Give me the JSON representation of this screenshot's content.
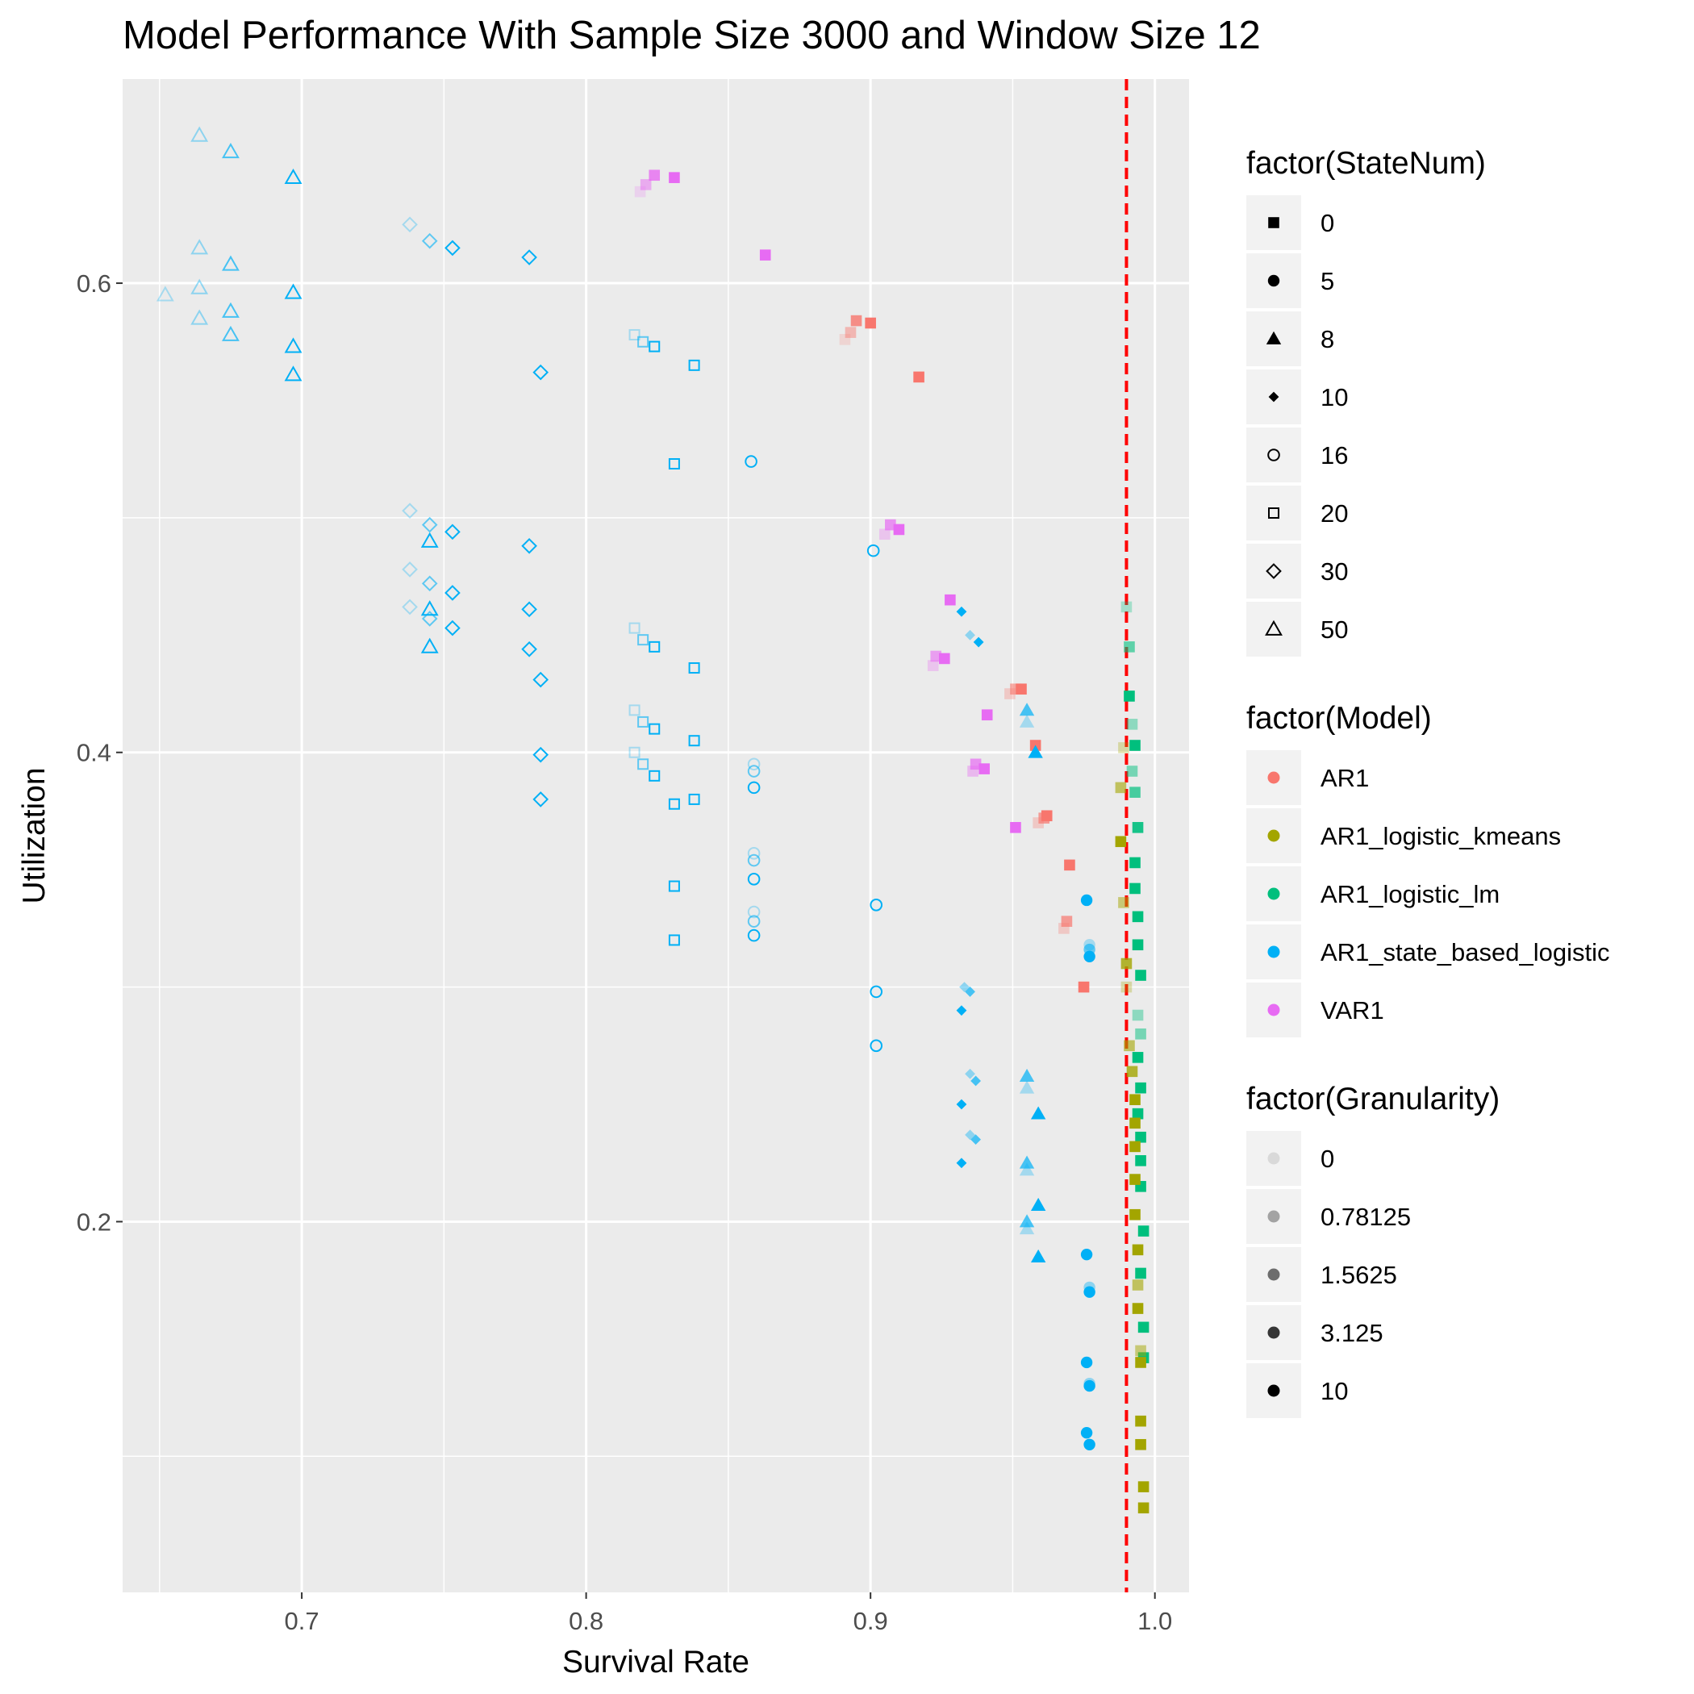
{
  "chart_data": {
    "type": "scatter",
    "title": "Model Performance With Sample Size 3000 and Window Size 12",
    "xlabel": "Survival Rate",
    "ylabel": "Utilization",
    "xlim": [
      0.637,
      1.012
    ],
    "ylim": [
      0.042,
      0.687
    ],
    "x_ticks": [
      0.7,
      0.8,
      0.9,
      1.0
    ],
    "x_tick_labels": [
      "0.7",
      "0.8",
      "0.9",
      "1.0"
    ],
    "y_ticks": [
      0.2,
      0.4,
      0.6
    ],
    "y_tick_labels": [
      "0.2",
      "0.4",
      "0.6"
    ],
    "reference_line": {
      "x": 0.99,
      "color": "#ff0000",
      "style": "dashed"
    },
    "background": "#ebebeb",
    "grid": true,
    "legend_position": "right",
    "legends": [
      {
        "title": "factor(StateNum)",
        "kind": "shape",
        "entries": [
          {
            "label": "0",
            "shape": "square-filled"
          },
          {
            "label": "5",
            "shape": "circle-filled"
          },
          {
            "label": "8",
            "shape": "triangle-filled"
          },
          {
            "label": "10",
            "shape": "diamond-filled"
          },
          {
            "label": "16",
            "shape": "circle-open"
          },
          {
            "label": "20",
            "shape": "square-open"
          },
          {
            "label": "30",
            "shape": "diamond-open"
          },
          {
            "label": "50",
            "shape": "triangle-open"
          }
        ]
      },
      {
        "title": "factor(Model)",
        "kind": "color",
        "entries": [
          {
            "label": "AR1",
            "color": "#f8766d"
          },
          {
            "label": "AR1_logistic_kmeans",
            "color": "#a3a500"
          },
          {
            "label": "AR1_logistic_lm",
            "color": "#00bf7d"
          },
          {
            "label": "AR1_state_based_logistic",
            "color": "#00b0f6"
          },
          {
            "label": "VAR1",
            "color": "#e76bf3"
          }
        ]
      },
      {
        "title": "factor(Granularity)",
        "kind": "alpha",
        "entries": [
          {
            "label": "0",
            "alpha": 0.1
          },
          {
            "label": "0.78125",
            "alpha": 0.325
          },
          {
            "label": "1.5625",
            "alpha": 0.55
          },
          {
            "label": "3.125",
            "alpha": 0.775
          },
          {
            "label": "10",
            "alpha": 1.0
          }
        ]
      }
    ],
    "series": [
      {
        "name": "AR1",
        "state": "0",
        "color": "#f8766d",
        "shape": "square-filled",
        "points": [
          [
            0.891,
            0.576,
            0.2
          ],
          [
            0.893,
            0.579,
            0.45
          ],
          [
            0.895,
            0.584,
            0.8
          ],
          [
            0.9,
            0.583,
            1
          ],
          [
            0.917,
            0.56,
            1
          ],
          [
            0.949,
            0.425,
            0.3
          ],
          [
            0.951,
            0.427,
            0.6
          ],
          [
            0.953,
            0.427,
            1
          ],
          [
            0.958,
            0.403,
            1
          ],
          [
            0.959,
            0.37,
            0.3
          ],
          [
            0.961,
            0.372,
            0.7
          ],
          [
            0.962,
            0.373,
            1
          ],
          [
            0.968,
            0.325,
            0.3
          ],
          [
            0.969,
            0.328,
            0.7
          ],
          [
            0.97,
            0.352,
            1
          ],
          [
            0.975,
            0.3,
            1
          ]
        ]
      },
      {
        "name": "VAR1",
        "state": "0",
        "color": "#e76bf3",
        "shape": "square-filled",
        "points": [
          [
            0.819,
            0.639,
            0.2
          ],
          [
            0.821,
            0.642,
            0.5
          ],
          [
            0.824,
            0.646,
            0.8
          ],
          [
            0.831,
            0.645,
            1
          ],
          [
            0.863,
            0.612,
            1
          ],
          [
            0.905,
            0.493,
            0.3
          ],
          [
            0.907,
            0.497,
            0.7
          ],
          [
            0.91,
            0.495,
            1
          ],
          [
            0.928,
            0.465,
            1
          ],
          [
            0.922,
            0.437,
            0.3
          ],
          [
            0.923,
            0.441,
            0.6
          ],
          [
            0.926,
            0.44,
            1
          ],
          [
            0.936,
            0.392,
            0.4
          ],
          [
            0.937,
            0.395,
            0.7
          ],
          [
            0.94,
            0.393,
            1
          ],
          [
            0.941,
            0.416,
            1
          ],
          [
            0.951,
            0.368,
            1
          ]
        ]
      },
      {
        "name": "AR1_logistic_lm",
        "state": "0",
        "color": "#00bf7d",
        "shape": "square-filled",
        "points": [
          [
            0.99,
            0.462,
            0.3
          ],
          [
            0.991,
            0.445,
            0.6
          ],
          [
            0.991,
            0.424,
            1
          ],
          [
            0.992,
            0.412,
            0.4
          ],
          [
            0.993,
            0.403,
            1
          ],
          [
            0.992,
            0.392,
            0.5
          ],
          [
            0.993,
            0.383,
            0.7
          ],
          [
            0.994,
            0.368,
            0.9
          ],
          [
            0.993,
            0.353,
            1
          ],
          [
            0.993,
            0.342,
            1
          ],
          [
            0.994,
            0.33,
            1
          ],
          [
            0.994,
            0.318,
            1
          ],
          [
            0.995,
            0.305,
            1
          ],
          [
            0.994,
            0.288,
            0.4
          ],
          [
            0.995,
            0.28,
            0.5
          ],
          [
            0.994,
            0.27,
            1
          ],
          [
            0.995,
            0.257,
            1
          ],
          [
            0.994,
            0.246,
            1
          ],
          [
            0.995,
            0.236,
            1
          ],
          [
            0.995,
            0.226,
            1
          ],
          [
            0.995,
            0.215,
            1
          ],
          [
            0.996,
            0.196,
            1
          ],
          [
            0.995,
            0.178,
            1
          ],
          [
            0.996,
            0.155,
            1
          ],
          [
            0.996,
            0.142,
            1
          ]
        ]
      },
      {
        "name": "AR1_logistic_kmeans",
        "state": "0",
        "color": "#a3a500",
        "shape": "square-filled",
        "points": [
          [
            0.989,
            0.402,
            0.3
          ],
          [
            0.988,
            0.385,
            0.6
          ],
          [
            0.988,
            0.362,
            1
          ],
          [
            0.989,
            0.336,
            0.5
          ],
          [
            0.99,
            0.31,
            0.8
          ],
          [
            0.99,
            0.3,
            0.3
          ],
          [
            0.991,
            0.275,
            0.6
          ],
          [
            0.992,
            0.264,
            0.8
          ],
          [
            0.993,
            0.252,
            1
          ],
          [
            0.993,
            0.242,
            1
          ],
          [
            0.993,
            0.232,
            1
          ],
          [
            0.993,
            0.218,
            1
          ],
          [
            0.993,
            0.203,
            1
          ],
          [
            0.994,
            0.188,
            1
          ],
          [
            0.994,
            0.173,
            0.6
          ],
          [
            0.994,
            0.163,
            1
          ],
          [
            0.995,
            0.145,
            0.5
          ],
          [
            0.995,
            0.14,
            1
          ],
          [
            0.995,
            0.115,
            1
          ],
          [
            0.995,
            0.105,
            1
          ],
          [
            0.996,
            0.087,
            1
          ],
          [
            0.996,
            0.078,
            1
          ]
        ]
      },
      {
        "name": "AR1_state_based_logistic",
        "state": "5",
        "color": "#00b0f6",
        "shape": "circle-filled",
        "points": [
          [
            0.976,
            0.337,
            1
          ],
          [
            0.977,
            0.318,
            0.3
          ],
          [
            0.977,
            0.316,
            0.6
          ],
          [
            0.977,
            0.313,
            1
          ],
          [
            0.976,
            0.186,
            1
          ],
          [
            0.977,
            0.172,
            0.4
          ],
          [
            0.977,
            0.17,
            1
          ],
          [
            0.976,
            0.14,
            1
          ],
          [
            0.977,
            0.131,
            0.4
          ],
          [
            0.977,
            0.13,
            1
          ],
          [
            0.976,
            0.11,
            1
          ],
          [
            0.977,
            0.105,
            1
          ]
        ]
      },
      {
        "name": "AR1_state_based_logistic",
        "state": "8",
        "color": "#00b0f6",
        "shape": "triangle-filled",
        "points": [
          [
            0.955,
            0.413,
            0.3
          ],
          [
            0.955,
            0.418,
            0.7
          ],
          [
            0.958,
            0.4,
            1
          ],
          [
            0.955,
            0.257,
            0.3
          ],
          [
            0.955,
            0.262,
            0.7
          ],
          [
            0.959,
            0.246,
            1
          ],
          [
            0.955,
            0.222,
            0.3
          ],
          [
            0.955,
            0.225,
            0.7
          ],
          [
            0.959,
            0.207,
            1
          ],
          [
            0.955,
            0.197,
            0.3
          ],
          [
            0.955,
            0.2,
            0.7
          ],
          [
            0.959,
            0.185,
            1
          ]
        ]
      },
      {
        "name": "AR1_state_based_logistic",
        "state": "10",
        "color": "#00b0f6",
        "shape": "diamond-filled",
        "points": [
          [
            0.932,
            0.46,
            1
          ],
          [
            0.935,
            0.45,
            0.4
          ],
          [
            0.938,
            0.447,
            1
          ],
          [
            0.933,
            0.3,
            0.4
          ],
          [
            0.935,
            0.298,
            0.7
          ],
          [
            0.932,
            0.29,
            1
          ],
          [
            0.935,
            0.263,
            0.4
          ],
          [
            0.937,
            0.26,
            0.7
          ],
          [
            0.932,
            0.25,
            1
          ],
          [
            0.935,
            0.237,
            0.4
          ],
          [
            0.937,
            0.235,
            0.7
          ],
          [
            0.932,
            0.225,
            1
          ]
        ]
      },
      {
        "name": "AR1_state_based_logistic",
        "state": "16",
        "color": "#00b0f6",
        "shape": "circle-open",
        "points": [
          [
            0.858,
            0.524,
            1
          ],
          [
            0.901,
            0.486,
            1
          ],
          [
            0.859,
            0.395,
            0.3
          ],
          [
            0.859,
            0.392,
            0.6
          ],
          [
            0.859,
            0.385,
            1
          ],
          [
            0.859,
            0.357,
            0.3
          ],
          [
            0.859,
            0.354,
            0.6
          ],
          [
            0.859,
            0.346,
            1
          ],
          [
            0.859,
            0.332,
            0.3
          ],
          [
            0.859,
            0.328,
            0.6
          ],
          [
            0.859,
            0.322,
            1
          ],
          [
            0.902,
            0.335,
            1
          ],
          [
            0.902,
            0.298,
            1
          ],
          [
            0.902,
            0.275,
            1
          ]
        ]
      },
      {
        "name": "AR1_state_based_logistic",
        "state": "20",
        "color": "#00b0f6",
        "shape": "square-open",
        "points": [
          [
            0.817,
            0.578,
            0.3
          ],
          [
            0.82,
            0.575,
            0.6
          ],
          [
            0.824,
            0.573,
            1
          ],
          [
            0.838,
            0.565,
            1
          ],
          [
            0.831,
            0.523,
            1
          ],
          [
            0.817,
            0.453,
            0.3
          ],
          [
            0.82,
            0.448,
            0.6
          ],
          [
            0.824,
            0.445,
            1
          ],
          [
            0.838,
            0.436,
            1
          ],
          [
            0.817,
            0.418,
            0.3
          ],
          [
            0.82,
            0.413,
            0.6
          ],
          [
            0.824,
            0.41,
            1
          ],
          [
            0.838,
            0.405,
            1
          ],
          [
            0.817,
            0.4,
            0.3
          ],
          [
            0.82,
            0.395,
            0.6
          ],
          [
            0.824,
            0.39,
            1
          ],
          [
            0.838,
            0.38,
            1
          ],
          [
            0.831,
            0.378,
            1
          ],
          [
            0.831,
            0.343,
            1
          ],
          [
            0.831,
            0.32,
            1
          ]
        ]
      },
      {
        "name": "AR1_state_based_logistic",
        "state": "30",
        "color": "#00b0f6",
        "shape": "diamond-open",
        "points": [
          [
            0.738,
            0.625,
            0.3
          ],
          [
            0.745,
            0.618,
            0.6
          ],
          [
            0.753,
            0.615,
            1
          ],
          [
            0.78,
            0.611,
            1
          ],
          [
            0.784,
            0.562,
            1
          ],
          [
            0.738,
            0.503,
            0.3
          ],
          [
            0.745,
            0.497,
            0.6
          ],
          [
            0.753,
            0.494,
            1
          ],
          [
            0.78,
            0.488,
            1
          ],
          [
            0.738,
            0.478,
            0.3
          ],
          [
            0.745,
            0.472,
            0.6
          ],
          [
            0.753,
            0.468,
            1
          ],
          [
            0.78,
            0.461,
            1
          ],
          [
            0.738,
            0.462,
            0.3
          ],
          [
            0.745,
            0.457,
            0.6
          ],
          [
            0.753,
            0.453,
            1
          ],
          [
            0.78,
            0.444,
            1
          ],
          [
            0.784,
            0.431,
            1
          ],
          [
            0.784,
            0.399,
            1
          ],
          [
            0.784,
            0.38,
            1
          ]
        ]
      },
      {
        "name": "AR1_state_based_logistic",
        "state": "50",
        "color": "#00b0f6",
        "shape": "triangle-open",
        "points": [
          [
            0.664,
            0.663,
            0.4
          ],
          [
            0.675,
            0.656,
            0.7
          ],
          [
            0.697,
            0.645,
            1
          ],
          [
            0.664,
            0.615,
            0.4
          ],
          [
            0.675,
            0.608,
            0.7
          ],
          [
            0.664,
            0.598,
            0.4
          ],
          [
            0.652,
            0.595,
            0.3
          ],
          [
            0.675,
            0.588,
            0.7
          ],
          [
            0.697,
            0.596,
            1
          ],
          [
            0.664,
            0.585,
            0.4
          ],
          [
            0.675,
            0.578,
            0.7
          ],
          [
            0.697,
            0.573,
            1
          ],
          [
            0.697,
            0.561,
            1
          ],
          [
            0.745,
            0.49,
            1
          ],
          [
            0.745,
            0.461,
            1
          ],
          [
            0.745,
            0.445,
            1
          ]
        ]
      }
    ]
  }
}
